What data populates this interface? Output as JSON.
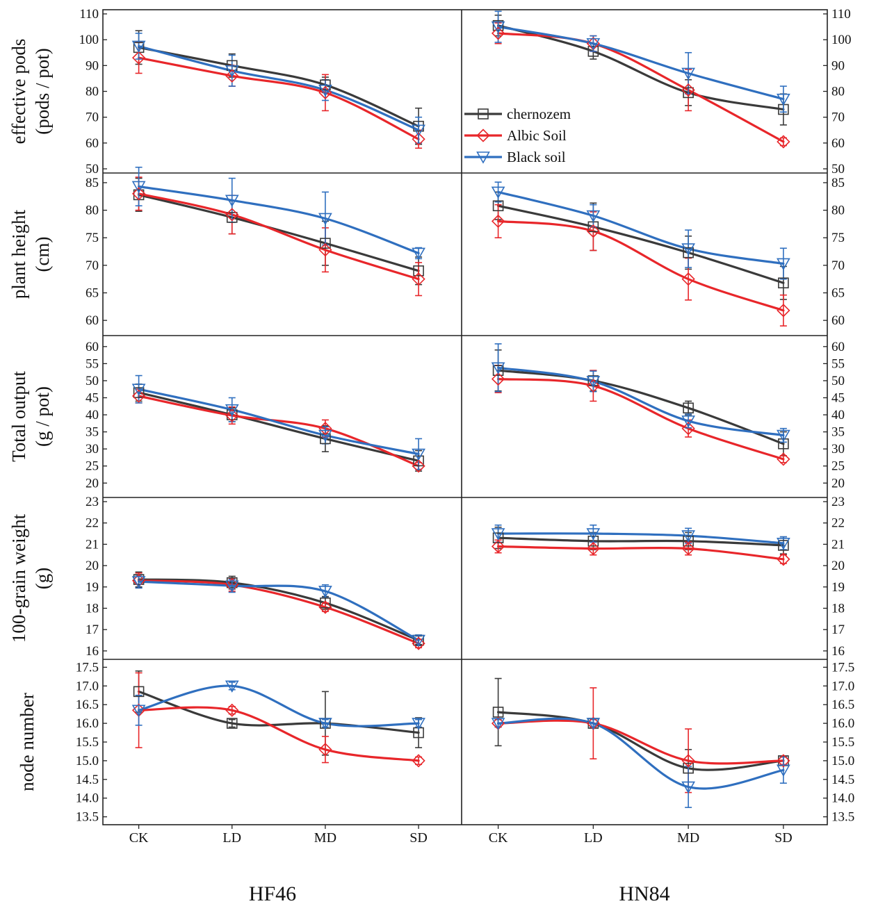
{
  "chart_data": {
    "type": "line",
    "categories": [
      "CK",
      "LD",
      "MD",
      "SD"
    ],
    "columns": [
      "HF46",
      "HN84"
    ],
    "legend": {
      "position": "inside-top-left of HN84 effective pods panel",
      "entries": [
        {
          "name": "chernozem",
          "color": "#3a3a3a",
          "marker": "square"
        },
        {
          "name": "Albic Soil",
          "color": "#e8262a",
          "marker": "diamond"
        },
        {
          "name": "Black soil",
          "color": "#2f6fbf",
          "marker": "triangle-down"
        }
      ]
    },
    "rows": [
      {
        "ylabel": [
          "effective pods",
          "(pods / pot)"
        ],
        "ylim": [
          50,
          110
        ],
        "ticks": [
          50,
          60,
          70,
          80,
          90,
          100,
          110
        ],
        "tick_labels": [
          "50",
          "60",
          "70",
          "80",
          "90",
          "100",
          "110"
        ],
        "panels": [
          {
            "column": "HF46",
            "series": [
              {
                "name": "chernozem",
                "values": [
                  97,
                  90,
                  82.5,
                  66.5
                ],
                "errors": [
                  6.5,
                  4.5,
                  3,
                  7
                ]
              },
              {
                "name": "Albic Soil",
                "values": [
                  93,
                  86,
                  79.5,
                  61.5
                ],
                "errors": [
                  6,
                  4,
                  7,
                  3.5
                ]
              },
              {
                "name": "Black soil",
                "values": [
                  97.5,
                  88,
                  80.5,
                  65
                ],
                "errors": [
                  5,
                  6,
                  4,
                  5
                ]
              }
            ]
          },
          {
            "column": "HN84",
            "series": [
              {
                "name": "chernozem",
                "values": [
                  105.5,
                  95.5,
                  79.5,
                  73
                ],
                "errors": [
                  4,
                  3,
                  5,
                  6
                ]
              },
              {
                "name": "Albic Soil",
                "values": [
                  102.5,
                  98.5,
                  80.5,
                  60.5
                ],
                "errors": [
                  4,
                  3,
                  8,
                  1.5
                ]
              },
              {
                "name": "Black soil",
                "values": [
                  105,
                  98.5,
                  87,
                  77
                ],
                "errors": [
                  6,
                  3,
                  8,
                  5
                ]
              }
            ]
          }
        ]
      },
      {
        "ylabel": [
          "plant height",
          "(cm)"
        ],
        "ylim": [
          58,
          86
        ],
        "ticks": [
          60,
          65,
          70,
          75,
          80,
          85
        ],
        "tick_labels": [
          "60",
          "65",
          "70",
          "75",
          "80",
          "85"
        ],
        "panels": [
          {
            "column": "HF46",
            "series": [
              {
                "name": "chernozem",
                "values": [
                  82.8,
                  78.7,
                  74,
                  69
                ],
                "errors": [
                  3,
                  3,
                  4,
                  2.5
                ]
              },
              {
                "name": "Albic Soil",
                "values": [
                  83,
                  79.2,
                  72.8,
                  67.5
                ],
                "errors": [
                  3,
                  3.5,
                  4,
                  3
                ]
              },
              {
                "name": "Black soil",
                "values": [
                  84.3,
                  81.8,
                  78.5,
                  72.2
                ],
                "errors": [
                  3.5,
                  4,
                  4.8,
                  1
                ]
              }
            ]
          },
          {
            "column": "HN84",
            "series": [
              {
                "name": "chernozem",
                "values": [
                  80.8,
                  77,
                  72.3,
                  66.8
                ],
                "errors": [
                  2.5,
                  4.3,
                  3,
                  3
                ]
              },
              {
                "name": "Albic Soil",
                "values": [
                  78,
                  76.2,
                  67.5,
                  61.8
                ],
                "errors": [
                  3,
                  3.5,
                  3.8,
                  2.8
                ]
              },
              {
                "name": "Black soil",
                "values": [
                  83.3,
                  79,
                  73,
                  70.3
                ],
                "errors": [
                  1.8,
                  2,
                  3.4,
                  2.8
                ]
              }
            ]
          }
        ]
      },
      {
        "ylabel": [
          "Total output",
          "(g / pot)"
        ],
        "ylim": [
          17,
          62
        ],
        "ticks": [
          20,
          25,
          30,
          35,
          40,
          45,
          50,
          55,
          60
        ],
        "tick_labels": [
          "20",
          "25",
          "30",
          "35",
          "40",
          "45",
          "50",
          "55",
          "60"
        ],
        "panels": [
          {
            "column": "HF46",
            "series": [
              {
                "name": "chernozem",
                "values": [
                  46.5,
                  40,
                  33,
                  26.5
                ],
                "errors": [
                  2.5,
                  2,
                  3.8,
                  3
                ]
              },
              {
                "name": "Albic Soil",
                "values": [
                  45.5,
                  39.8,
                  36,
                  25
                ],
                "errors": [
                  2,
                  2.5,
                  2.5,
                  1
                ]
              },
              {
                "name": "Black soil",
                "values": [
                  47.5,
                  41.5,
                  34,
                  28.5
                ],
                "errors": [
                  4,
                  3.5,
                  2.5,
                  4.5
                ]
              }
            ]
          },
          {
            "column": "HN84",
            "series": [
              {
                "name": "chernozem",
                "values": [
                  53,
                  50,
                  42,
                  31.5
                ],
                "errors": [
                  6,
                  3,
                  2,
                  3.5
                ]
              },
              {
                "name": "Albic Soil",
                "values": [
                  50.5,
                  48.5,
                  36,
                  27
                ],
                "errors": [
                  4,
                  4.5,
                  2.5,
                  1
                ]
              },
              {
                "name": "Black soil",
                "values": [
                  53.8,
                  49.8,
                  38.2,
                  34
                ],
                "errors": [
                  7,
                  3,
                  2,
                  2
                ]
              }
            ]
          }
        ]
      },
      {
        "ylabel": [
          "100-grain weight",
          "(g)"
        ],
        "ylim": [
          15.8,
          23
        ],
        "ticks": [
          16,
          17,
          18,
          19,
          20,
          21,
          22,
          23
        ],
        "tick_labels": [
          "16",
          "17",
          "18",
          "19",
          "20",
          "21",
          "22",
          "23"
        ],
        "panels": [
          {
            "column": "HF46",
            "series": [
              {
                "name": "chernozem",
                "values": [
                  19.35,
                  19.2,
                  18.25,
                  16.5
                ],
                "errors": [
                  0.35,
                  0.3,
                  0.3,
                  0.2
                ]
              },
              {
                "name": "Albic Soil",
                "values": [
                  19.3,
                  19.1,
                  18.05,
                  16.35
                ],
                "errors": [
                  0.35,
                  0.3,
                  0.2,
                  0.2
                ]
              },
              {
                "name": "Black soil",
                "values": [
                  19.25,
                  19.05,
                  18.8,
                  16.5
                ],
                "errors": [
                  0.3,
                  0.3,
                  0.3,
                  0.25
                ]
              }
            ]
          },
          {
            "column": "HN84",
            "series": [
              {
                "name": "chernozem",
                "values": [
                  21.3,
                  21.15,
                  21.15,
                  20.95
                ],
                "errors": [
                  0.5,
                  0.4,
                  0.4,
                  0.4
                ]
              },
              {
                "name": "Albic Soil",
                "values": [
                  20.9,
                  20.8,
                  20.8,
                  20.3
                ],
                "errors": [
                  0.3,
                  0.3,
                  0.3,
                  0.2
                ]
              },
              {
                "name": "Black soil",
                "values": [
                  21.5,
                  21.5,
                  21.4,
                  21.05
                ],
                "errors": [
                  0.4,
                  0.4,
                  0.35,
                  0.3
                ]
              }
            ]
          }
        ]
      },
      {
        "ylabel": [
          "node number"
        ],
        "ylim": [
          13.4,
          17.6
        ],
        "ticks": [
          13.5,
          14.0,
          14.5,
          15.0,
          15.5,
          16.0,
          16.5,
          17.0,
          17.5
        ],
        "tick_labels": [
          "13.5",
          "14.0",
          "14.5",
          "15.0",
          "15.5",
          "16.0",
          "16.5",
          "17.0",
          "17.5"
        ],
        "panels": [
          {
            "column": "HF46",
            "series": [
              {
                "name": "chernozem",
                "values": [
                  16.85,
                  16.0,
                  16.0,
                  15.75
                ],
                "errors": [
                  0.55,
                  0.1,
                  0.85,
                  0.4
                ]
              },
              {
                "name": "Albic Soil",
                "values": [
                  16.35,
                  16.35,
                  15.3,
                  15.0
                ],
                "errors": [
                  1.0,
                  0.1,
                  0.35,
                  0.1
                ]
              },
              {
                "name": "Black soil",
                "values": [
                  16.35,
                  17.0,
                  16.0,
                  16.0
                ],
                "errors": [
                  0.4,
                  0.1,
                  0.1,
                  0.1
                ]
              }
            ]
          },
          {
            "column": "HN84",
            "series": [
              {
                "name": "chernozem",
                "values": [
                  16.3,
                  16.0,
                  14.8,
                  15.0
                ],
                "errors": [
                  0.9,
                  0.1,
                  0.5,
                  0.1
                ]
              },
              {
                "name": "Albic Soil",
                "values": [
                  16.0,
                  16.0,
                  15.0,
                  15.0
                ],
                "errors": [
                  0.1,
                  0.95,
                  0.85,
                  0.1
                ]
              },
              {
                "name": "Black soil",
                "values": [
                  16.0,
                  16.0,
                  14.3,
                  14.75
                ],
                "errors": [
                  0.1,
                  0.1,
                  0.55,
                  0.35
                ]
              }
            ]
          }
        ]
      }
    ]
  }
}
